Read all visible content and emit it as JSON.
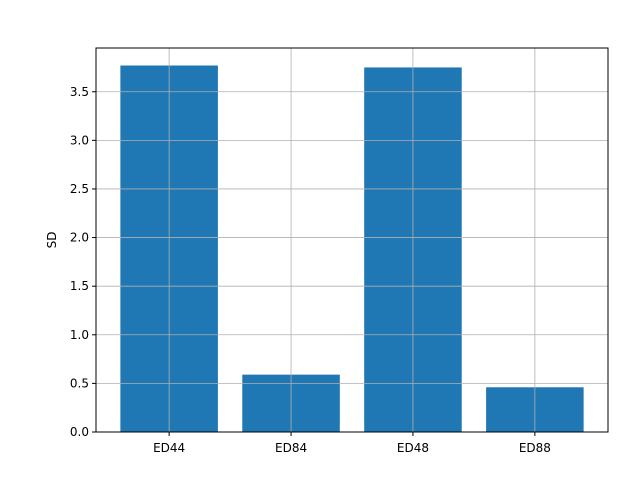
{
  "chart_data": {
    "type": "bar",
    "title": "",
    "xlabel": "",
    "ylabel": "SD",
    "categories": [
      "ED44",
      "ED84",
      "ED48",
      "ED88"
    ],
    "values": [
      3.77,
      0.59,
      3.75,
      0.46
    ],
    "ylim": [
      0,
      3.95
    ],
    "yticks": [
      0.0,
      0.5,
      1.0,
      1.5,
      2.0,
      2.5,
      3.0,
      3.5
    ],
    "ytick_labels": [
      "0.0",
      "0.5",
      "1.0",
      "1.5",
      "2.0",
      "2.5",
      "3.0",
      "3.5"
    ],
    "grid": true,
    "legend": "none",
    "bar_color": "#1f77b4",
    "grid_color": "#b0b0b0"
  }
}
